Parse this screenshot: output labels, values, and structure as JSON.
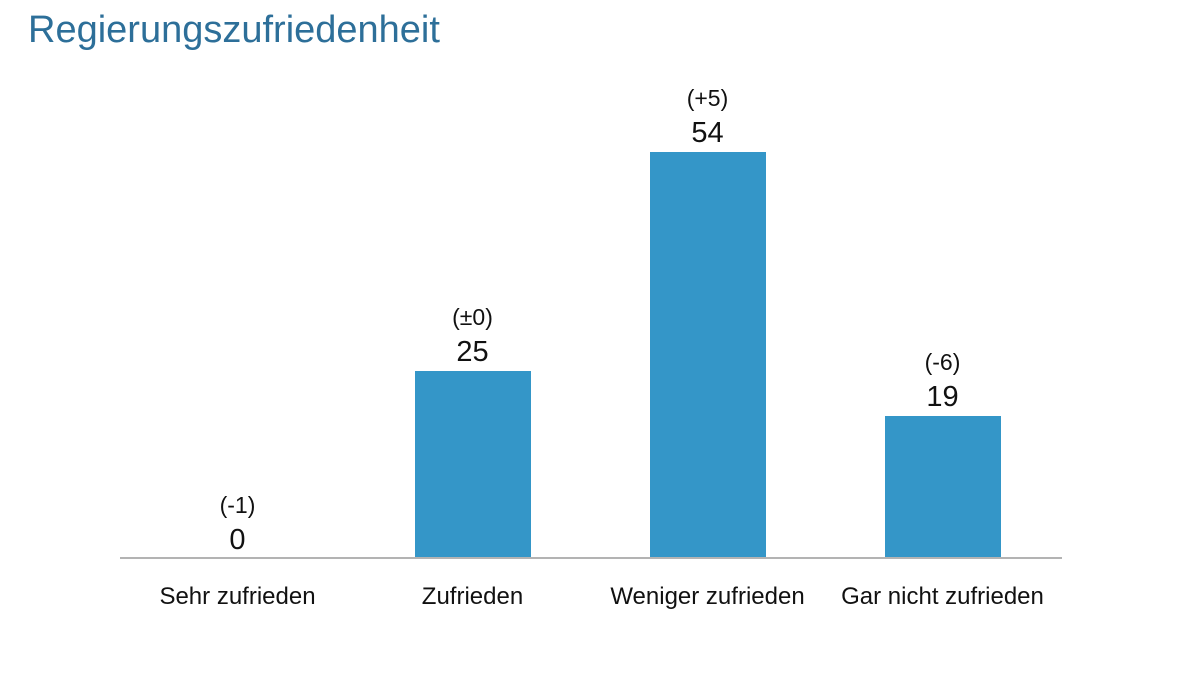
{
  "page": {
    "title": "Regierungszufriedenheit"
  },
  "chart_data": {
    "type": "bar",
    "title": "Regierungszufriedenheit",
    "categories": [
      "Sehr zufrieden",
      "Zufrieden",
      "Weniger zufrieden",
      "Gar nicht zufrieden"
    ],
    "values": [
      0,
      25,
      54,
      19
    ],
    "change_labels": [
      "(-1)",
      "(±0)",
      "(+5)",
      "(-6)"
    ],
    "ylim": [
      0,
      60
    ],
    "grid": false,
    "legend": "none",
    "bar_color": "#3496c8"
  },
  "colors": {
    "title_text": "#2d6f99",
    "label_text": "#111111",
    "axis_line": "#b3b3b3",
    "background": "#ffffff"
  }
}
